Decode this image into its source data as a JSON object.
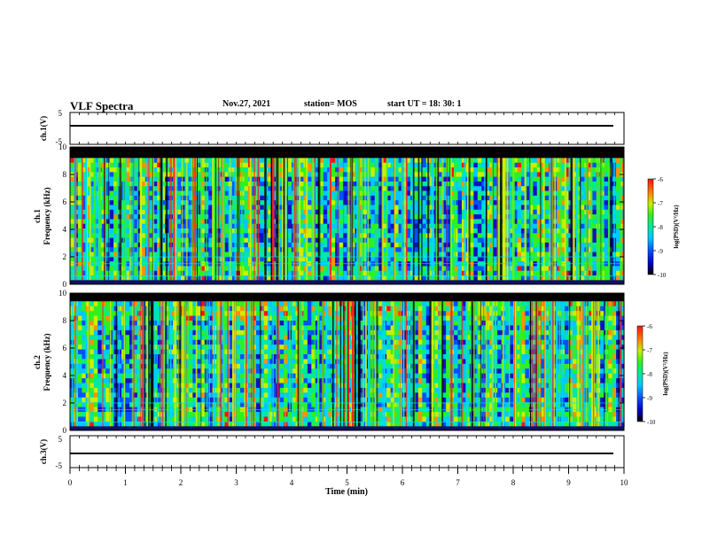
{
  "header": {
    "title": "VLF Spectra",
    "date": "Nov.27, 2021",
    "station": "station= MOS",
    "start": "start UT =  18: 30: 1"
  },
  "chart_data": [
    {
      "type": "line",
      "panel": "ch1-waveform",
      "ylabel": "ch.1(V)",
      "ylim": [
        -5,
        5
      ],
      "y_ticks": [
        "5",
        "-5"
      ],
      "series": [
        {
          "values": [
            0,
            0,
            0,
            0,
            0,
            0,
            0,
            0,
            0,
            0,
            0
          ]
        }
      ]
    },
    {
      "type": "heatmap",
      "panel": "ch1-spectrogram",
      "ylabel": [
        "ch.1",
        "Frequency (kHz)"
      ],
      "ylim": [
        0,
        10
      ],
      "y_ticks": [
        "0",
        "2",
        "4",
        "6",
        "8",
        "10"
      ],
      "colorbar": {
        "label": "log(PSD)(V²/Hz)",
        "range": [
          -10,
          -6
        ],
        "ticks": [
          "-6",
          "-7",
          "-8",
          "-9",
          "-10"
        ]
      },
      "band_khz": [
        0.3,
        9.2
      ]
    },
    {
      "type": "heatmap",
      "panel": "ch2-spectrogram",
      "ylabel": [
        "ch.2",
        "Frequency (kHz)"
      ],
      "ylim": [
        0,
        10
      ],
      "y_ticks": [
        "0",
        "2",
        "4",
        "6",
        "8",
        "10"
      ],
      "colorbar": {
        "label": "log(PSD)(V²/Hz)",
        "range": [
          -10,
          -6
        ],
        "ticks": [
          "-6",
          "-7",
          "-8",
          "-9",
          "-10"
        ]
      },
      "band_khz": [
        0.3,
        9.4
      ]
    },
    {
      "type": "line",
      "panel": "ch3-waveform",
      "ylabel": "ch.3(V)",
      "ylim": [
        -5,
        5
      ],
      "y_ticks": [
        "5",
        "-5"
      ],
      "series": [
        {
          "values": [
            0,
            0,
            0,
            0,
            0,
            0,
            0,
            0,
            0,
            0,
            0
          ]
        }
      ]
    }
  ],
  "xaxis": {
    "label": "Time (min)",
    "xlim": [
      0,
      10
    ],
    "ticks": [
      "0",
      "1",
      "2",
      "3",
      "4",
      "5",
      "6",
      "7",
      "8",
      "9",
      "10"
    ]
  },
  "colors": {
    "colormap": [
      "#000000",
      "#1010c0",
      "#0050ff",
      "#00c8ff",
      "#00e8a0",
      "#30f020",
      "#c8f000",
      "#ff9000",
      "#ff1010"
    ],
    "trace": "#000000"
  }
}
